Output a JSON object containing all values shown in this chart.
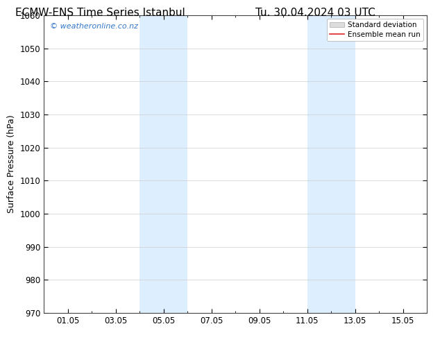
{
  "title": "ECMW-ENS Time Series Istanbul",
  "title2": "Tu. 30.04.2024 03 UTC",
  "ylabel": "Surface Pressure (hPa)",
  "ylim": [
    970,
    1060
  ],
  "yticks": [
    970,
    980,
    990,
    1000,
    1010,
    1020,
    1030,
    1040,
    1050,
    1060
  ],
  "xtick_positions": [
    1,
    3,
    5,
    7,
    9,
    11,
    13,
    15
  ],
  "xtick_labels": [
    "01.05",
    "03.05",
    "05.05",
    "07.05",
    "09.05",
    "11.05",
    "13.05",
    "15.05"
  ],
  "xlim": [
    0,
    16
  ],
  "shaded_regions": [
    {
      "x_start": 4.0,
      "x_end": 6.0
    },
    {
      "x_start": 11.0,
      "x_end": 13.0
    }
  ],
  "shade_color": "#ddeeff",
  "watermark_text": "© weatheronline.co.nz",
  "watermark_color": "#3377cc",
  "legend_std_label": "Standard deviation",
  "legend_mean_label": "Ensemble mean run",
  "legend_std_facecolor": "#dddddd",
  "legend_std_edgecolor": "#aaaaaa",
  "legend_mean_color": "#dd2222",
  "bg_color": "#ffffff",
  "grid_color": "#cccccc",
  "spine_color": "#444444",
  "title_fontsize": 11,
  "ylabel_fontsize": 9,
  "tick_fontsize": 8.5,
  "watermark_fontsize": 8,
  "legend_fontsize": 7.5
}
